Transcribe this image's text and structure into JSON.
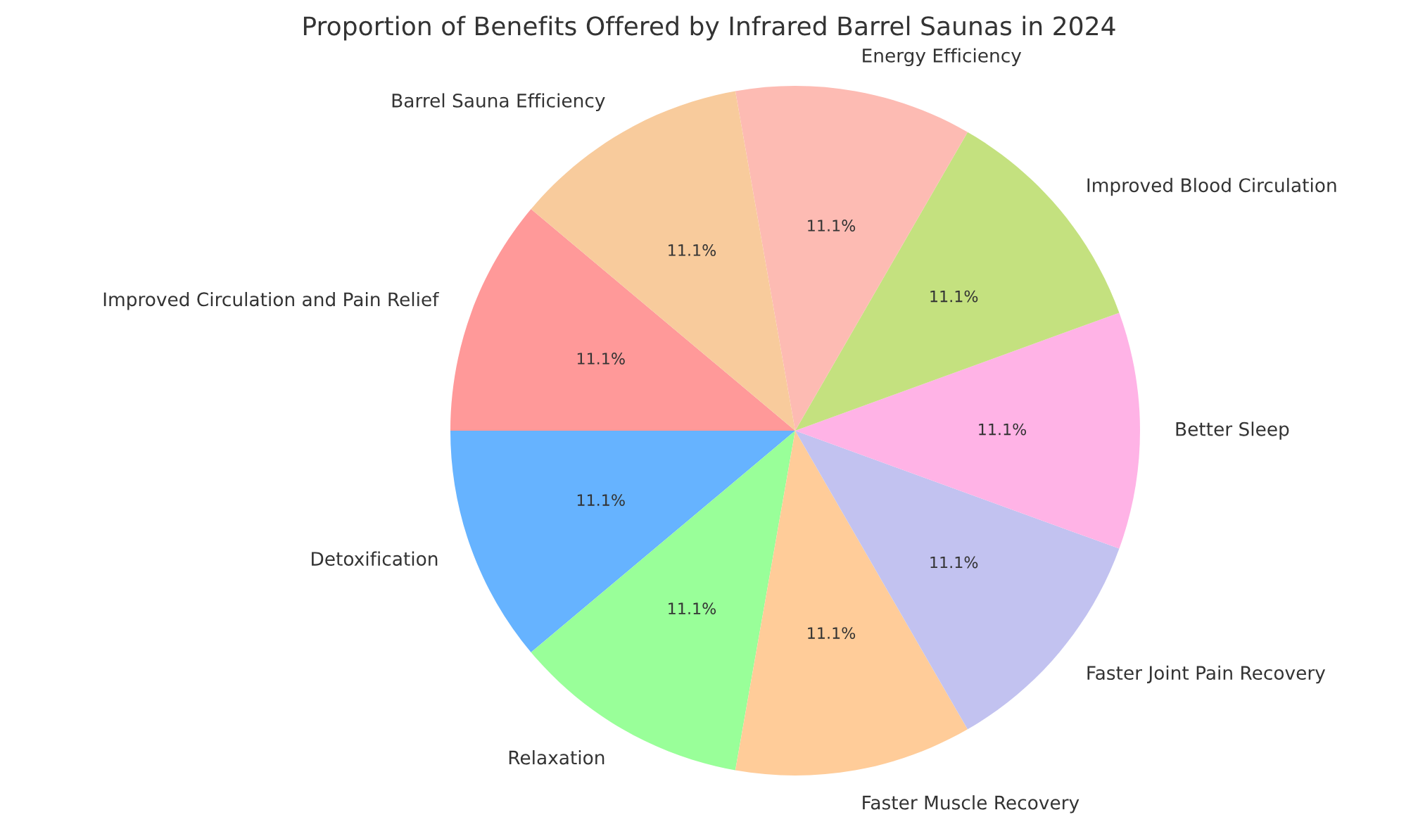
{
  "chart_data": {
    "type": "pie",
    "title": "Proportion of Benefits Offered by Infrared Barrel Saunas in 2024",
    "categories": [
      "Improved Circulation and Pain Relief",
      "Detoxification",
      "Relaxation",
      "Faster Muscle Recovery",
      "Faster Joint Pain Recovery",
      "Better Sleep",
      "Improved Blood Circulation",
      "Energy Efficiency",
      "Barrel Sauna Efficiency"
    ],
    "values": [
      11.1,
      11.1,
      11.1,
      11.1,
      11.1,
      11.1,
      11.1,
      11.1,
      11.1
    ],
    "value_labels": [
      "11.1%",
      "11.1%",
      "11.1%",
      "11.1%",
      "11.1%",
      "11.1%",
      "11.1%",
      "11.1%",
      "11.1%"
    ],
    "colors": [
      "#ff9999",
      "#66b3ff",
      "#99ff99",
      "#ffcc99",
      "#c2c2f0",
      "#ffb3e6",
      "#c4e17f",
      "#fdbbb3",
      "#f8cb9c"
    ],
    "legend": false
  }
}
